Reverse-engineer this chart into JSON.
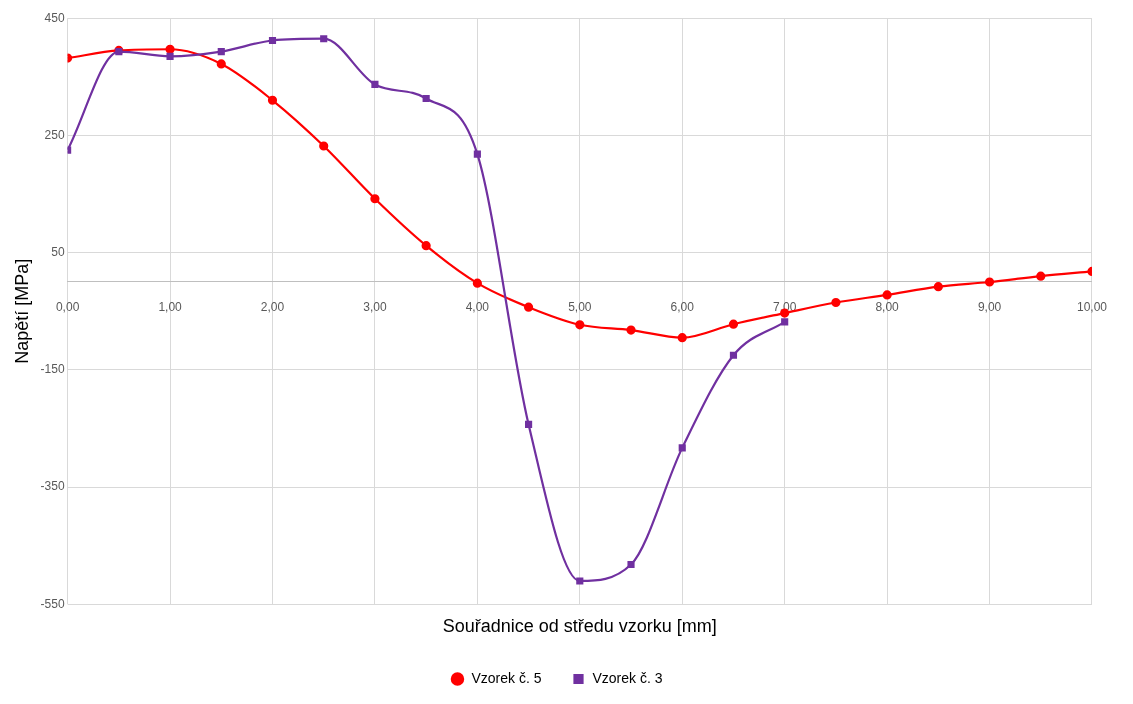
{
  "chart_data": {
    "type": "line",
    "xlabel": "Souřadnice od středu vzorku [mm]",
    "ylabel": "Napětí [MPa]",
    "x": [
      0,
      0.5,
      1,
      1.5,
      2,
      2.5,
      3,
      3.5,
      4,
      4.5,
      5,
      5.5,
      6,
      6.5,
      7,
      7.5,
      8,
      8.5,
      9,
      9.5,
      10
    ],
    "series": [
      {
        "name": "Vzorek č. 5",
        "color": "#ff0000",
        "marker": "circle",
        "values": [
          382,
          395,
          397,
          372,
          310,
          232,
          142,
          62,
          -2,
          -43,
          -73,
          -82,
          -95,
          -72,
          -53,
          -35,
          -22,
          -8,
          0,
          10,
          18
        ]
      },
      {
        "name": "Vzorek č. 3",
        "color": "#7030a0",
        "marker": "square",
        "x": [
          0,
          0.5,
          1,
          1.5,
          2,
          2.5,
          3,
          3.5,
          4,
          4.5,
          5,
          5.5,
          6,
          6.5,
          7
        ],
        "values": [
          225,
          393,
          385,
          393,
          412,
          415,
          337,
          313,
          218,
          -243,
          -510,
          -482,
          -283,
          -125,
          -68
        ]
      }
    ],
    "xlim": [
      0,
      10
    ],
    "xticks": [
      {
        "value": 0,
        "label": "0,00"
      },
      {
        "value": 1,
        "label": "1,00"
      },
      {
        "value": 2,
        "label": "2,00"
      },
      {
        "value": 3,
        "label": "3,00"
      },
      {
        "value": 4,
        "label": "4,00"
      },
      {
        "value": 5,
        "label": "5,00"
      },
      {
        "value": 6,
        "label": "6,00"
      },
      {
        "value": 7,
        "label": "7,00"
      },
      {
        "value": 8,
        "label": "8,00"
      },
      {
        "value": 9,
        "label": "9,00"
      },
      {
        "value": 10,
        "label": "10,00"
      }
    ],
    "ylim": [
      -550,
      450
    ],
    "yticks": [
      -550,
      -350,
      -150,
      50,
      250,
      450
    ],
    "grid": true,
    "legend": "bottom",
    "line_style": "solid"
  }
}
